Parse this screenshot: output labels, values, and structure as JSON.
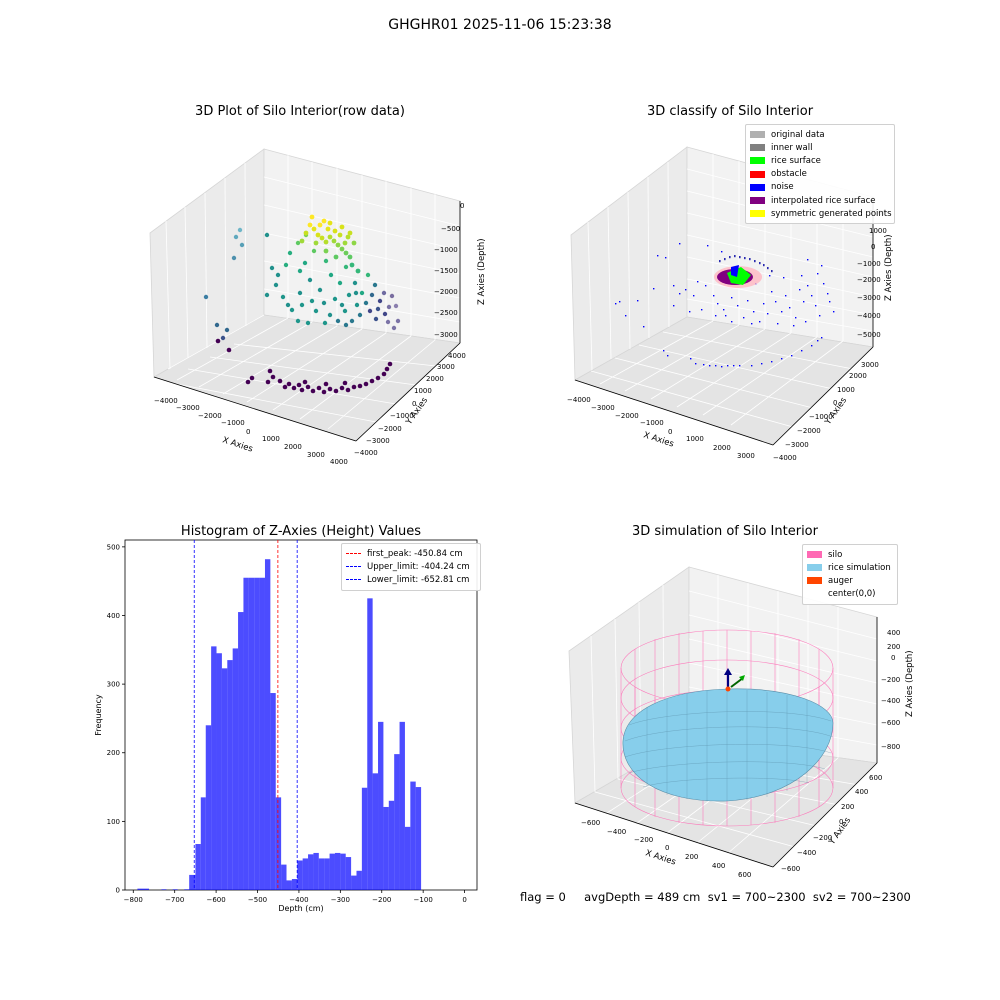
{
  "suptitle": "GHGHR01 2025-11-06 15:23:38",
  "footer": "flag = 0     avgDepth = 489 cm  sv1 = 700~2300  sv2 = 700~2300",
  "panels": {
    "raw": {
      "title": "3D Plot of Silo Interior(row data)",
      "xlabel": "X Axies",
      "ylabel": "Y Axies",
      "zlabel": "Z Axies (Depth)",
      "xticks": [
        "−4000",
        "−3000",
        "−2000",
        "−1000",
        "0",
        "1000",
        "2000",
        "3000",
        "4000"
      ],
      "yticks": [
        "−4000",
        "−3000",
        "−2000",
        "−1000",
        "0",
        "1000",
        "2000",
        "3000",
        "4000"
      ],
      "zticks": [
        "−3000",
        "−2500",
        "−2000",
        "−1500",
        "−1000",
        "−500",
        "0"
      ]
    },
    "classify": {
      "title": "3D classify of Silo Interior",
      "xlabel": "X Axies",
      "ylabel": "Y Axies",
      "zlabel": "Z Axies (Depth)",
      "xticks": [
        "−4000",
        "−3000",
        "−2000",
        "−1000",
        "0",
        "1000",
        "2000",
        "3000"
      ],
      "yticks": [
        "−4000",
        "−3000",
        "−2000",
        "−1000",
        "0",
        "1000",
        "2000",
        "3000"
      ],
      "zticks": [
        "−5000",
        "−4000",
        "−3000",
        "−2000",
        "−1000",
        "0",
        "1000",
        "2000"
      ],
      "legend": [
        {
          "label": "original data",
          "color": "#b0b0b0"
        },
        {
          "label": "inner wall",
          "color": "#808080"
        },
        {
          "label": "rice surface",
          "color": "#00ff00"
        },
        {
          "label": "obstacle",
          "color": "#ff0000"
        },
        {
          "label": "noise",
          "color": "#0000ff"
        },
        {
          "label": "interpolated rice surface",
          "color": "#800080"
        },
        {
          "label": "symmetric generated points",
          "color": "#ffff00"
        }
      ]
    },
    "simulation": {
      "title": "3D simulation of Silo Interior",
      "xlabel": "X Axies",
      "ylabel": "Y Axies",
      "zlabel": "Z Axies (Depth)",
      "xticks": [
        "−600",
        "−400",
        "−200",
        "0",
        "200",
        "400",
        "600"
      ],
      "yticks": [
        "−600",
        "−400",
        "−200",
        "0",
        "200",
        "400",
        "600"
      ],
      "zticks": [
        "−800",
        "−600",
        "−400",
        "−200",
        "0",
        "200",
        "400"
      ],
      "legend": [
        {
          "label": "silo",
          "color": "#ff69b4"
        },
        {
          "label": "rice simulation",
          "color": "#87ceeb"
        },
        {
          "label": "auger",
          "color": "#ff4500"
        },
        {
          "label": "center(0,0)",
          "color": "#ffffff"
        }
      ]
    }
  },
  "chart_data": {
    "type": "bar",
    "title": "Histogram of Z-Axies (Height) Values",
    "xlabel": "Depth (cm)",
    "ylabel": "Frequency",
    "xlim": [
      -820,
      30
    ],
    "ylim": [
      0,
      510
    ],
    "xticks": [
      -800,
      -700,
      -600,
      -500,
      -400,
      -300,
      -200,
      -100,
      0
    ],
    "yticks": [
      0,
      100,
      200,
      300,
      400,
      500
    ],
    "bar_color": "#0000ff",
    "bins": [
      {
        "x0": -790,
        "x1": -762,
        "count": 2
      },
      {
        "x0": -732,
        "x1": -720,
        "count": 1
      },
      {
        "x0": -705,
        "x1": -693,
        "count": 1
      },
      {
        "x0": -677,
        "x1": -665,
        "count": 1
      },
      {
        "x0": -665,
        "x1": -650,
        "count": 22
      },
      {
        "x0": -650,
        "x1": -637,
        "count": 67
      },
      {
        "x0": -637,
        "x1": -625,
        "count": 135
      },
      {
        "x0": -625,
        "x1": -612,
        "count": 240
      },
      {
        "x0": -612,
        "x1": -599,
        "count": 355
      },
      {
        "x0": -599,
        "x1": -586,
        "count": 345
      },
      {
        "x0": -586,
        "x1": -573,
        "count": 323
      },
      {
        "x0": -573,
        "x1": -560,
        "count": 335
      },
      {
        "x0": -560,
        "x1": -547,
        "count": 352
      },
      {
        "x0": -547,
        "x1": -534,
        "count": 405
      },
      {
        "x0": -534,
        "x1": -521,
        "count": 455
      },
      {
        "x0": -521,
        "x1": -508,
        "count": 455
      },
      {
        "x0": -508,
        "x1": -495,
        "count": 455
      },
      {
        "x0": -495,
        "x1": -482,
        "count": 455
      },
      {
        "x0": -482,
        "x1": -469,
        "count": 482
      },
      {
        "x0": -469,
        "x1": -456,
        "count": 287
      },
      {
        "x0": -456,
        "x1": -443,
        "count": 135
      },
      {
        "x0": -443,
        "x1": -430,
        "count": 37
      },
      {
        "x0": -430,
        "x1": -417,
        "count": 14
      },
      {
        "x0": -417,
        "x1": -404,
        "count": 16
      },
      {
        "x0": -404,
        "x1": -391,
        "count": 43
      },
      {
        "x0": -391,
        "x1": -378,
        "count": 46
      },
      {
        "x0": -378,
        "x1": -365,
        "count": 52
      },
      {
        "x0": -365,
        "x1": -352,
        "count": 54
      },
      {
        "x0": -352,
        "x1": -339,
        "count": 46
      },
      {
        "x0": -339,
        "x1": -326,
        "count": 46
      },
      {
        "x0": -326,
        "x1": -313,
        "count": 53
      },
      {
        "x0": -313,
        "x1": -300,
        "count": 54
      },
      {
        "x0": -300,
        "x1": -287,
        "count": 53
      },
      {
        "x0": -287,
        "x1": -274,
        "count": 48
      },
      {
        "x0": -274,
        "x1": -261,
        "count": 21
      },
      {
        "x0": -261,
        "x1": -248,
        "count": 28
      },
      {
        "x0": -248,
        "x1": -235,
        "count": 149
      },
      {
        "x0": -235,
        "x1": -222,
        "count": 425
      },
      {
        "x0": -222,
        "x1": -209,
        "count": 170
      },
      {
        "x0": -209,
        "x1": -196,
        "count": 245
      },
      {
        "x0": -196,
        "x1": -183,
        "count": 121
      },
      {
        "x0": -183,
        "x1": -170,
        "count": 130
      },
      {
        "x0": -170,
        "x1": -157,
        "count": 198
      },
      {
        "x0": -157,
        "x1": -144,
        "count": 245
      },
      {
        "x0": -144,
        "x1": -131,
        "count": 92
      },
      {
        "x0": -131,
        "x1": -118,
        "count": 158
      },
      {
        "x0": -118,
        "x1": -105,
        "count": 150
      }
    ],
    "vlines": [
      {
        "label": "first_peak: -450.84 cm",
        "x": -450.84,
        "color": "#ff0000"
      },
      {
        "label": "Upper_limit: -404.24 cm",
        "x": -404.24,
        "color": "#0000ff"
      },
      {
        "label": "Lower_limit: -652.81 cm",
        "x": -652.81,
        "color": "#0000ff"
      }
    ]
  }
}
